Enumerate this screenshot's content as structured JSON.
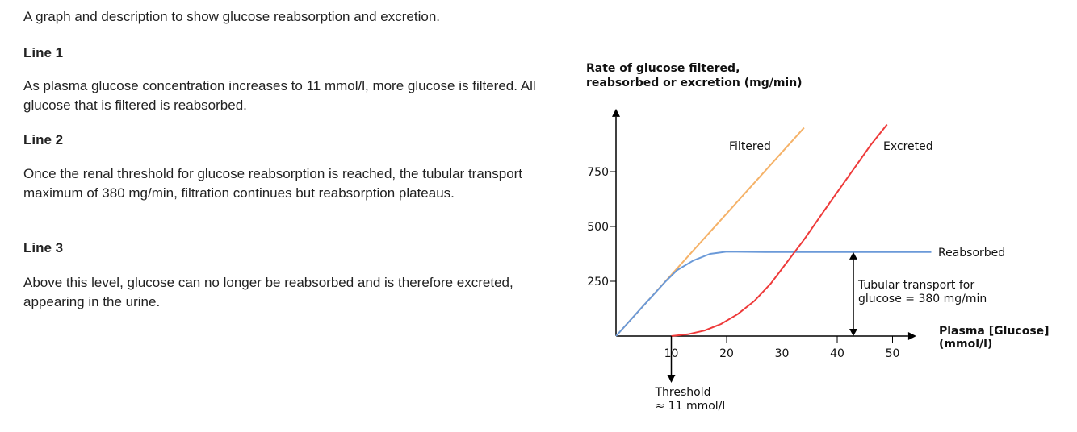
{
  "text": {
    "intro": "A graph and description to show glucose reabsorption and excretion.",
    "sections": [
      {
        "heading": "Line 1",
        "body": "As plasma glucose concentration increases to 11 mmol/l, more glucose is filtered. All glucose that is filtered is reabsorbed."
      },
      {
        "heading": "Line 2",
        "body": "Once the renal threshold for glucose reabsorption is reached, the tubular transport maximum of 380 mg/min, filtration continues but reabsorption plateaus."
      },
      {
        "heading": "Line 3",
        "body": "Above this level, glucose can no longer be reabsorbed and is therefore excreted, appearing in the urine."
      }
    ]
  },
  "chart_data": {
    "type": "line",
    "ylabel_line1": "Rate of glucose filtered,",
    "ylabel_line2": "reabsorbed or excretion (mg/min)",
    "xlabel_line1": "Plasma [Glucose]",
    "xlabel_line2": "(mmol/l)",
    "x_ticks": [
      10,
      20,
      30,
      40,
      50
    ],
    "y_ticks": [
      250,
      500,
      750
    ],
    "xlim": [
      0,
      54
    ],
    "ylim": [
      0,
      1030
    ],
    "series": [
      {
        "name": "Filtered",
        "color": "#f5b268",
        "points": [
          [
            0,
            0
          ],
          [
            34,
            950
          ]
        ]
      },
      {
        "name": "Reabsorbed",
        "color": "#6a99d8",
        "points": [
          [
            0,
            0
          ],
          [
            5,
            140
          ],
          [
            9,
            250
          ],
          [
            11,
            300
          ],
          [
            14,
            345
          ],
          [
            17,
            375
          ],
          [
            20,
            385
          ],
          [
            27,
            383
          ],
          [
            57,
            383
          ]
        ]
      },
      {
        "name": "Excreted",
        "color": "#ee3a3a",
        "points": [
          [
            10,
            0
          ],
          [
            13,
            8
          ],
          [
            16,
            25
          ],
          [
            19,
            55
          ],
          [
            22,
            100
          ],
          [
            25,
            160
          ],
          [
            28,
            240
          ],
          [
            31,
            340
          ],
          [
            34,
            440
          ],
          [
            38,
            585
          ],
          [
            46,
            870
          ],
          [
            49,
            965
          ]
        ]
      }
    ],
    "annotations": {
      "threshold_line1": "Threshold",
      "threshold_line2": "≈ 11 mmol/l",
      "transport_line1": "Tubular transport for",
      "transport_line2": "glucose  =  380 mg/min"
    }
  }
}
